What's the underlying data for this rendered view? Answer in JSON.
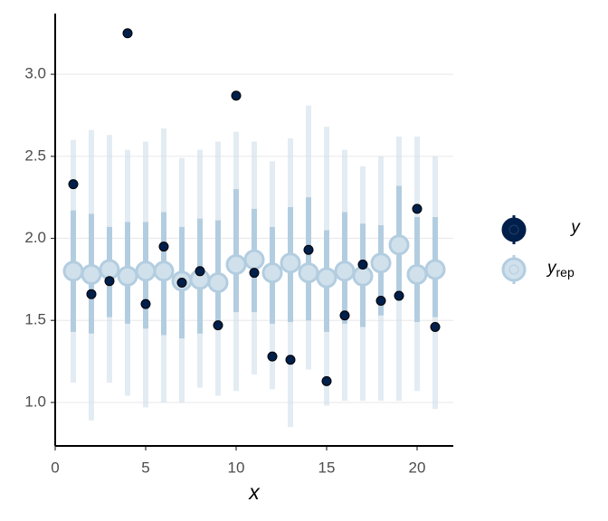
{
  "chart_data": {
    "type": "intervals",
    "x": [
      1,
      2,
      3,
      4,
      5,
      6,
      7,
      8,
      9,
      10,
      11,
      12,
      13,
      14,
      15,
      16,
      17,
      18,
      19,
      20,
      21
    ],
    "series": [
      {
        "name": "y",
        "color": "#011f4b",
        "values": [
          2.33,
          1.66,
          1.74,
          3.25,
          1.6,
          1.95,
          1.73,
          1.8,
          1.47,
          2.87,
          1.79,
          1.28,
          1.26,
          1.93,
          1.13,
          1.53,
          1.84,
          1.62,
          1.65,
          2.18,
          1.46
        ]
      },
      {
        "name": "y",
        "subscript": "rep",
        "color": "#d1e1ec",
        "inner_color": "#b3cde0",
        "values": [
          1.8,
          1.78,
          1.81,
          1.77,
          1.8,
          1.8,
          1.74,
          1.75,
          1.73,
          1.84,
          1.87,
          1.79,
          1.85,
          1.79,
          1.76,
          1.8,
          1.77,
          1.85,
          1.96,
          1.78,
          1.81
        ],
        "inner_low": [
          1.43,
          1.42,
          1.52,
          1.48,
          1.45,
          1.41,
          1.39,
          1.42,
          1.46,
          1.55,
          1.55,
          1.48,
          1.49,
          1.5,
          1.43,
          1.48,
          1.46,
          1.53,
          1.62,
          1.49,
          1.52
        ],
        "inner_high": [
          2.17,
          2.15,
          2.07,
          2.1,
          2.1,
          2.16,
          2.07,
          2.12,
          2.11,
          2.3,
          2.18,
          2.07,
          2.19,
          2.25,
          2.05,
          2.16,
          2.09,
          2.08,
          2.32,
          2.13,
          2.13
        ],
        "outer_low": [
          1.12,
          0.89,
          1.12,
          1.04,
          0.97,
          1.0,
          1.0,
          1.09,
          1.04,
          1.07,
          1.17,
          1.08,
          0.85,
          1.2,
          0.98,
          1.01,
          1.01,
          1.01,
          1.01,
          1.07,
          0.96
        ],
        "outer_high": [
          2.6,
          2.66,
          2.63,
          2.54,
          2.59,
          2.67,
          2.49,
          2.54,
          2.59,
          2.65,
          2.59,
          2.47,
          2.61,
          2.81,
          2.68,
          2.54,
          2.44,
          2.5,
          2.62,
          2.62,
          2.5
        ]
      }
    ],
    "xlabel": "x",
    "xlim": [
      0,
      22
    ],
    "xticks": [
      0,
      5,
      10,
      15,
      20
    ],
    "ylim": [
      0.735,
      3.37
    ],
    "yticks": [
      {
        "value": 1,
        "label": "1.0"
      },
      {
        "value": 1.5,
        "label": "1.5"
      },
      {
        "value": 2,
        "label": "2.0"
      },
      {
        "value": 2.5,
        "label": "2.5"
      },
      {
        "value": 3,
        "label": "3.0"
      }
    ],
    "grid": true
  }
}
